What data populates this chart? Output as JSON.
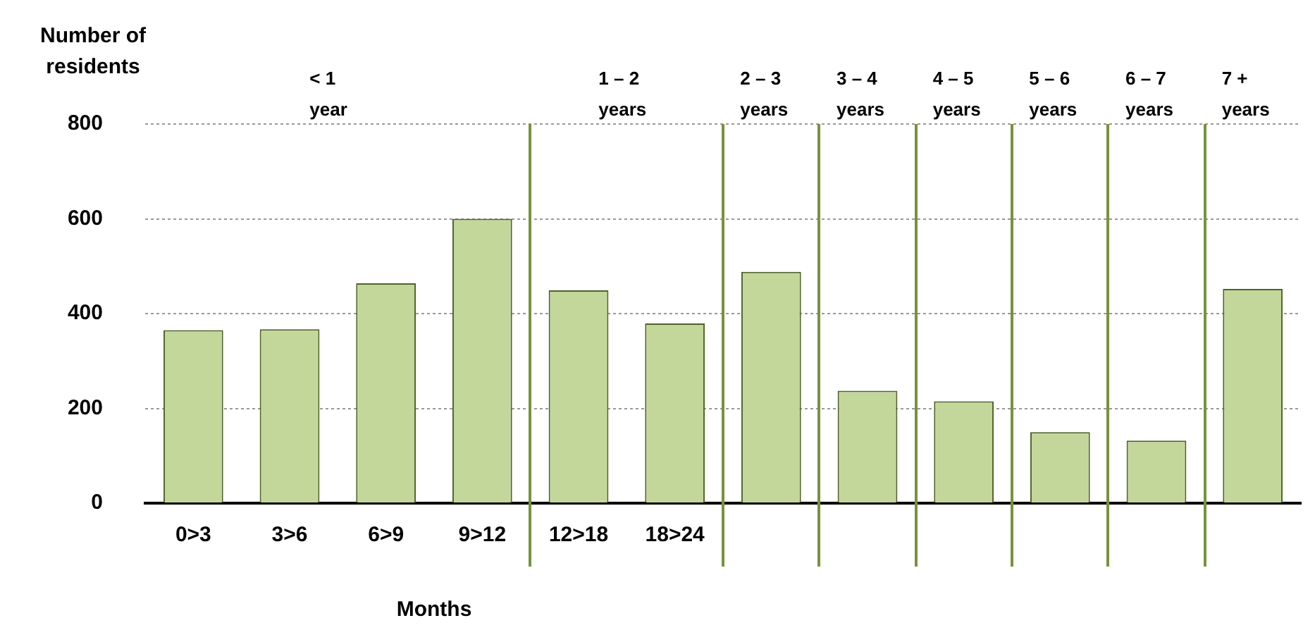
{
  "chart_data": {
    "type": "bar",
    "ylabel": "Number of residents",
    "xlabel": "Months",
    "categories": [
      "0>3",
      "3>6",
      "6>9",
      "9>12",
      "12>18",
      "18>24",
      null,
      null,
      null,
      null,
      null,
      null
    ],
    "values": [
      365,
      367,
      464,
      600,
      449,
      379,
      488,
      237,
      215,
      150,
      132,
      452
    ],
    "color": "#c4d79b",
    "ylim": [
      0,
      800
    ],
    "yticks": [
      0,
      200,
      400,
      600,
      800
    ],
    "grid": "y",
    "legend": false,
    "annotations": [
      "< 1 year",
      "1 – 2 years",
      "2 – 3 years",
      "3 – 4 years",
      "4 – 5 years",
      "5 – 6 years",
      "6 – 7 years",
      "7 + years"
    ]
  }
}
